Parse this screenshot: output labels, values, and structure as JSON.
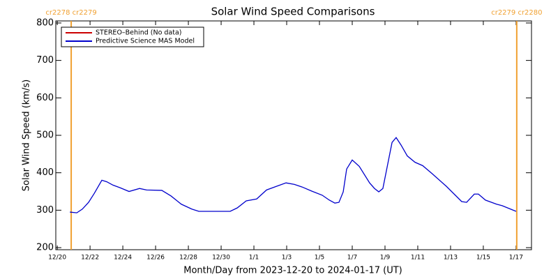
{
  "chart_data": {
    "type": "line",
    "title": "Solar Wind Speed Comparisons",
    "xlabel": "Month/Day from 2023-12-20 to 2024-01-17 (UT)",
    "ylabel": "Solar Wind Speed (km/s)",
    "x": [
      0.77,
      1.19,
      1.53,
      1.91,
      2.26,
      2.72,
      3.02,
      3.4,
      3.83,
      4.38,
      5.02,
      5.45,
      6.38,
      6.94,
      7.57,
      8.21,
      8.64,
      10.55,
      10.98,
      11.53,
      12.17,
      12.77,
      13.45,
      13.96,
      14.47,
      14.94,
      15.53,
      16.17,
      16.6,
      16.94,
      17.19,
      17.45,
      17.66,
      18.0,
      18.43,
      19.06,
      19.36,
      19.62,
      19.87,
      20.43,
      20.68,
      20.98,
      21.36,
      21.83,
      22.3,
      22.89,
      23.74,
      24.43,
      24.68,
      24.98,
      25.45,
      25.7,
      26.13,
      26.81,
      27.15,
      28.0
    ],
    "series": [
      {
        "name": "STEREO–Behind (No data)",
        "color": "#cc0000",
        "values": [
          null,
          null,
          null,
          null,
          null,
          null,
          null,
          null,
          null,
          null,
          null,
          null,
          null,
          null,
          null,
          null,
          null,
          null,
          null,
          null,
          null,
          null,
          null,
          null,
          null,
          null,
          null,
          null,
          null,
          null,
          null,
          null,
          null,
          null,
          null,
          null,
          null,
          null,
          null,
          null,
          null,
          null,
          null,
          null,
          null,
          null,
          null,
          null,
          null,
          null,
          null,
          null,
          null,
          null,
          null,
          null
        ]
      },
      {
        "name": "Predictive Science MAS Model",
        "color": "#0000cc",
        "values": [
          295,
          293,
          303,
          321,
          345,
          380,
          376,
          367,
          360,
          350,
          358,
          354,
          353,
          338,
          316,
          303,
          297,
          297,
          306,
          325,
          330,
          354,
          365,
          373,
          369,
          362,
          351,
          340,
          327,
          319,
          321,
          349,
          410,
          434,
          417,
          373,
          358,
          349,
          358,
          481,
          494,
          474,
          445,
          428,
          419,
          397,
          364,
          334,
          323,
          321,
          343,
          343,
          327,
          316,
          312,
          297
        ]
      }
    ],
    "xlim": [
      -0.09,
      28.94
    ],
    "xticks": [
      {
        "value": 0,
        "label": "12/20"
      },
      {
        "value": 2,
        "label": "12/22"
      },
      {
        "value": 4,
        "label": "12/24"
      },
      {
        "value": 6,
        "label": "12/26"
      },
      {
        "value": 8,
        "label": "12/28"
      },
      {
        "value": 10,
        "label": "12/30"
      },
      {
        "value": 12,
        "label": "1/1"
      },
      {
        "value": 14,
        "label": "1/3"
      },
      {
        "value": 16,
        "label": "1/5"
      },
      {
        "value": 18,
        "label": "1/7"
      },
      {
        "value": 20,
        "label": "1/9"
      },
      {
        "value": 22,
        "label": "1/11"
      },
      {
        "value": 24,
        "label": "1/13"
      },
      {
        "value": 26,
        "label": "1/15"
      },
      {
        "value": 28,
        "label": "1/17"
      }
    ],
    "ylim": [
      194.5,
      805.5
    ],
    "yticks": [
      200,
      300,
      400,
      500,
      600,
      700,
      800
    ],
    "markers": [
      {
        "x": 0.85,
        "label": "cr2278 cr2279"
      },
      {
        "x": 28.04,
        "label": "cr2279 cr2280"
      }
    ],
    "marker_color": "#f0a030",
    "legend": "upper left"
  }
}
